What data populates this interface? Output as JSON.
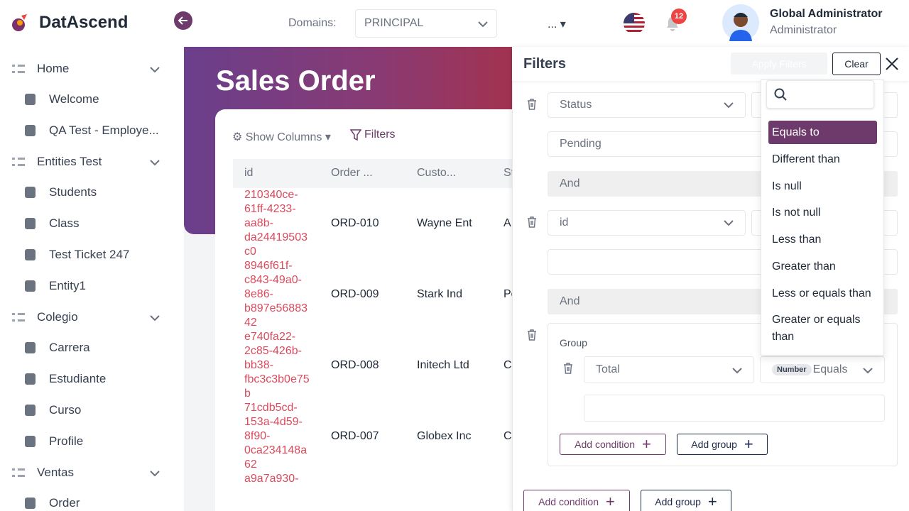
{
  "app": {
    "name": "DatAscend"
  },
  "header": {
    "domains_label": "Domains:",
    "domain_value": "PRINCIPAL",
    "more": "...",
    "notifications": 12,
    "user_name": "Global Administrator",
    "user_role": "Administrator"
  },
  "sidebar": {
    "groups": [
      {
        "label": "Home",
        "items": [
          "Welcome",
          "QA Test - Employe..."
        ]
      },
      {
        "label": "Entities Test",
        "items": [
          "Students",
          "Class",
          "Test Ticket 247",
          "Entity1"
        ]
      },
      {
        "label": "Colegio",
        "items": [
          "Carrera",
          "Estudiante",
          "Curso",
          "Profile"
        ]
      },
      {
        "label": "Ventas",
        "items": [
          "Order"
        ]
      }
    ]
  },
  "page": {
    "title": "Sales Order",
    "show_columns": "Show Columns",
    "filters": "Filters"
  },
  "table": {
    "headers": [
      "id",
      "Order ...",
      "Custo...",
      "St"
    ],
    "rows": [
      [
        "210340ce-61ff-4233-aa8b-da24419503c0",
        "ORD-010",
        "Wayne Ent",
        "A"
      ],
      [
        "8946f61f-c843-49a0-8e86-b897e5688342",
        "ORD-009",
        "Stark Ind",
        "Pe"
      ],
      [
        "e740fa22-2c85-426b-bb38-fbc3c3b0e75b",
        "ORD-008",
        "Initech Ltd",
        "C"
      ],
      [
        "71cdb5cd-153a-4d59-8f90-0ca234148a62",
        "ORD-007",
        "Globex Inc",
        "C"
      ],
      [
        "a9a7a930-",
        "",
        "",
        ""
      ]
    ]
  },
  "filter_panel": {
    "title": "Filters",
    "apply": "Apply Filters",
    "clear": "Clear",
    "conditions": [
      {
        "field": "Status",
        "value": "Pending"
      },
      {
        "field": "id",
        "value": ""
      }
    ],
    "connectors": [
      "And",
      "And"
    ],
    "group": {
      "label": "Group",
      "field": "Total",
      "type": "Number",
      "operator": "Equals",
      "add_condition": "Add condition",
      "add_group": "Add group"
    },
    "add_condition": "Add condition",
    "add_group": "Add group",
    "operator_options": [
      "Equals to",
      "Different than",
      "Is null",
      "Is not null",
      "Less than",
      "Greater than",
      "Less or equals than",
      "Greater or equals than"
    ]
  }
}
